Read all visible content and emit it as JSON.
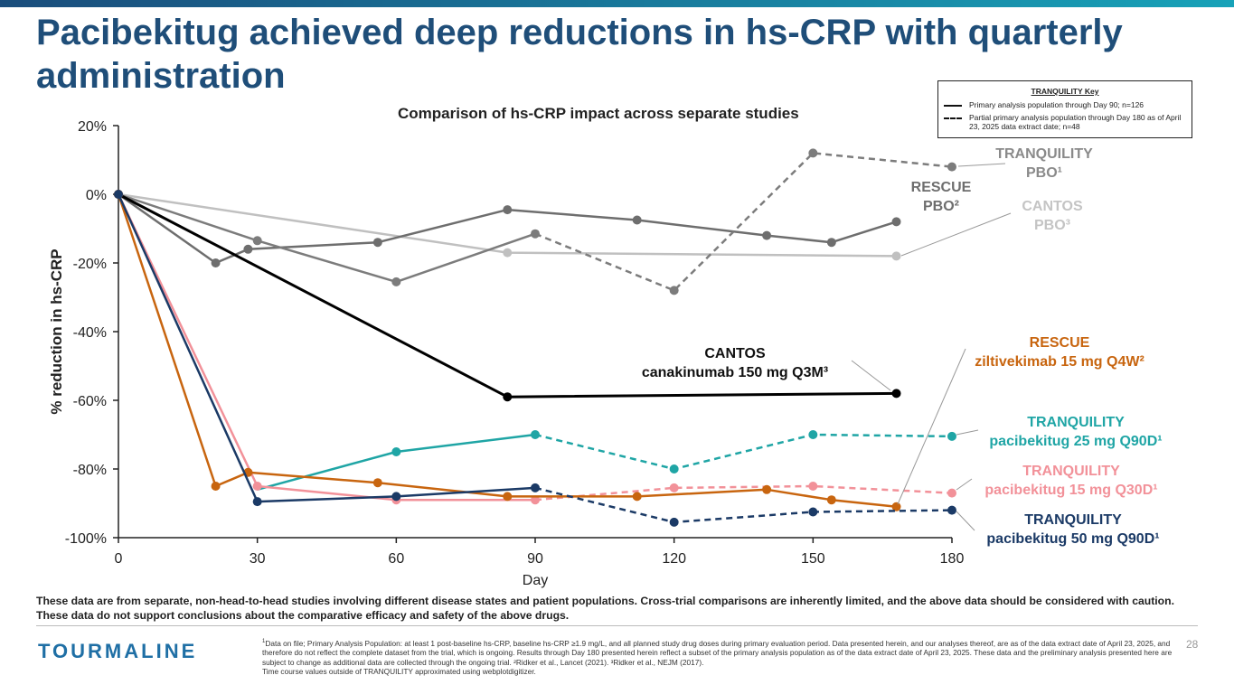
{
  "slide": {
    "title": "Pacibekitug achieved deep reductions in hs-CRP with quarterly administration",
    "accent_color": "#1f4e79",
    "bar_color_left": "#1a4d7c",
    "bar_color_right": "#17a2b8",
    "disclaimer": "These data are from separate, non-head-to-head studies involving different disease states and patient populations. Cross-trial comparisons are inherently limited, and the above data should be considered with caution. These data do not support conclusions about the comparative efficacy and safety of the above drugs.",
    "logo": "TOURMALINE",
    "footnote_marker": "1",
    "footnote_text": "Data on file; Primary Analysis Population: at least 1 post-baseline hs-CRP, baseline hs-CRP ≥1.9 mg/L, and all planned study drug doses during primary evaluation period. Data presented herein, and our analyses thereof, are as of the data extract date of April 23, 2025, and therefore do not reflect the complete dataset from the trial, which is ongoing. Results through Day 180 presented herein reflect a subset of the primary analysis population as of the data extract date of April 23, 2025. These data and the preliminary analysis presented here are subject to change as additional data are collected through the ongoing trial. ²Ridker et al., Lancet (2021). ³Ridker et al., NEJM (2017).",
    "footnote_line2": "Time course values outside of TRANQUILITY approximated using webplotdigitizer.",
    "page_number": "28"
  },
  "key": {
    "title": "TRANQUILITY Key",
    "solid_label": "Primary analysis population through Day 90; n=126",
    "dashed_label": "Partial primary analysis population through Day 180 as of April 23, 2025 data extract date; n=48"
  },
  "chart_data": {
    "type": "line",
    "title": "Comparison of hs-CRP impact across separate studies",
    "xlabel": "Day",
    "ylabel": "% reduction in hs-CRP",
    "xlim": [
      0,
      180
    ],
    "ylim": [
      -100,
      20
    ],
    "x_ticks": [
      0,
      30,
      60,
      90,
      120,
      150,
      180
    ],
    "x_tick_labels": [
      "0",
      "30",
      "60",
      "90",
      "120",
      "150",
      "180"
    ],
    "y_ticks": [
      20,
      0,
      -20,
      -40,
      -60,
      -80,
      -100
    ],
    "y_tick_labels": [
      "20%",
      "0%",
      "-20%",
      "-40%",
      "-60%",
      "-80%",
      "-100%"
    ],
    "series": [
      {
        "id": "cantos-pbo",
        "color": "#c0c0c0",
        "width": 2.5,
        "dash": false,
        "x": [
          0,
          84,
          168
        ],
        "y": [
          0,
          -17,
          -18
        ],
        "markers": [
          false,
          true,
          true
        ],
        "label_lines": [
          "CANTOS",
          "PBO³"
        ]
      },
      {
        "id": "rescue-pbo",
        "color": "#6e6e6e",
        "width": 2.5,
        "dash": false,
        "x": [
          0,
          21,
          28,
          56,
          84,
          112,
          140,
          154,
          168
        ],
        "y": [
          0,
          -20,
          -16,
          -14,
          -4.5,
          -7.5,
          -12,
          -14,
          -8
        ],
        "label_lines": [
          "RESCUE",
          "PBO²"
        ]
      },
      {
        "id": "tranquility-pbo",
        "color": "#7c7c7c",
        "width": 2.5,
        "dash": false,
        "x": [
          0,
          30,
          60,
          90
        ],
        "y": [
          0,
          -13.5,
          -25.5,
          -11.5
        ],
        "label_lines": [
          "TRANQUILITY",
          "PBO¹"
        ]
      },
      {
        "id": "tranquility-pbo-partial",
        "color": "#7c7c7c",
        "width": 2.5,
        "dash": true,
        "x": [
          90,
          120,
          150,
          180
        ],
        "y": [
          -11.5,
          -28,
          12,
          8
        ],
        "markers": [
          false,
          true,
          true,
          true
        ]
      },
      {
        "id": "cantos-canakinumab",
        "color": "#000000",
        "width": 3,
        "dash": false,
        "x": [
          0,
          84,
          168
        ],
        "y": [
          0,
          -59,
          -58
        ],
        "markers": [
          false,
          true,
          true
        ],
        "label_lines": [
          "CANTOS",
          "canakinumab 150 mg Q3M³"
        ]
      },
      {
        "id": "tranquility-25",
        "color": "#1fa5a5",
        "width": 2.5,
        "dash": false,
        "x": [
          30,
          60,
          90
        ],
        "y": [
          -86,
          -75,
          -70
        ],
        "markers": [
          false,
          true,
          true
        ],
        "label_lines": [
          "TRANQUILITY",
          "pacibekitug 25 mg Q90D¹"
        ]
      },
      {
        "id": "tranquility-25-partial",
        "color": "#1fa5a5",
        "width": 2.5,
        "dash": true,
        "x": [
          90,
          120,
          150,
          180
        ],
        "y": [
          -70,
          -80,
          -70,
          -70.5
        ],
        "markers": [
          false,
          true,
          true,
          true
        ]
      },
      {
        "id": "tranquility-15",
        "color": "#f29199",
        "width": 2.5,
        "dash": false,
        "x": [
          0,
          30,
          60,
          90
        ],
        "y": [
          0,
          -85,
          -89,
          -89
        ],
        "label_lines": [
          "TRANQUILITY",
          "pacibekitug 15 mg Q30D¹"
        ]
      },
      {
        "id": "tranquility-15-partial",
        "color": "#f29199",
        "width": 2.5,
        "dash": true,
        "x": [
          90,
          120,
          150,
          180
        ],
        "y": [
          -89,
          -85.5,
          -85,
          -87
        ],
        "markers": [
          false,
          true,
          true,
          true
        ]
      },
      {
        "id": "rescue-ziltivekimab",
        "color": "#c8650f",
        "width": 2.5,
        "dash": false,
        "x": [
          0,
          21,
          28,
          56,
          84,
          112,
          140,
          154,
          168
        ],
        "y": [
          0,
          -85,
          -81,
          -84,
          -88,
          -88,
          -86,
          -89,
          -91
        ],
        "label_lines": [
          "RESCUE",
          "ziltivekimab 15 mg Q4W²"
        ]
      },
      {
        "id": "tranquility-50",
        "color": "#1b3a66",
        "width": 2.5,
        "dash": false,
        "x": [
          0,
          30,
          60,
          90
        ],
        "y": [
          0,
          -89.5,
          -88,
          -85.5
        ],
        "label_lines": [
          "TRANQUILITY",
          "pacibekitug 50 mg Q90D¹"
        ]
      },
      {
        "id": "tranquility-50-partial",
        "color": "#1b3a66",
        "width": 2.5,
        "dash": true,
        "x": [
          90,
          120,
          150,
          180
        ],
        "y": [
          -85.5,
          -95.5,
          -92.5,
          -92
        ],
        "markers": [
          false,
          true,
          true,
          true
        ]
      }
    ]
  }
}
